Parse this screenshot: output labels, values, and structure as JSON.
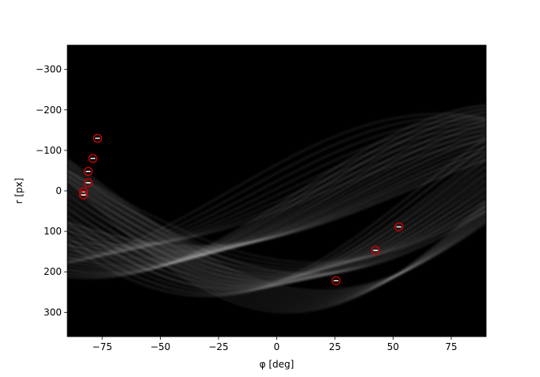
{
  "chart_data": {
    "type": "heatmap",
    "title": "",
    "xlabel": "φ [deg]",
    "ylabel": "r [px]",
    "xlim": [
      -90,
      90
    ],
    "ylim": [
      360,
      -360
    ],
    "y_inverted": true,
    "xticks": [
      -75,
      -50,
      -25,
      0,
      25,
      50,
      75
    ],
    "xtick_labels": [
      "−75",
      "−50",
      "−25",
      "0",
      "25",
      "50",
      "75"
    ],
    "yticks": [
      -300,
      -200,
      -100,
      0,
      100,
      200,
      300
    ],
    "ytick_labels": [
      "−300",
      "−200",
      "−100",
      "0",
      "100",
      "200",
      "300"
    ],
    "grid": false,
    "colormap": "gray",
    "background_color": "#000000",
    "marker_color": "#cc0000",
    "peaks": [
      {
        "phi": -77,
        "r": -130
      },
      {
        "phi": -79,
        "r": -80
      },
      {
        "phi": -81,
        "r": -48
      },
      {
        "phi": -81,
        "r": -20
      },
      {
        "phi": -83,
        "r": 2
      },
      {
        "phi": -83,
        "r": 10
      },
      {
        "phi": 25.5,
        "r": 222
      },
      {
        "phi": 42.5,
        "r": 147
      },
      {
        "phi": 52.5,
        "r": 89
      }
    ]
  }
}
